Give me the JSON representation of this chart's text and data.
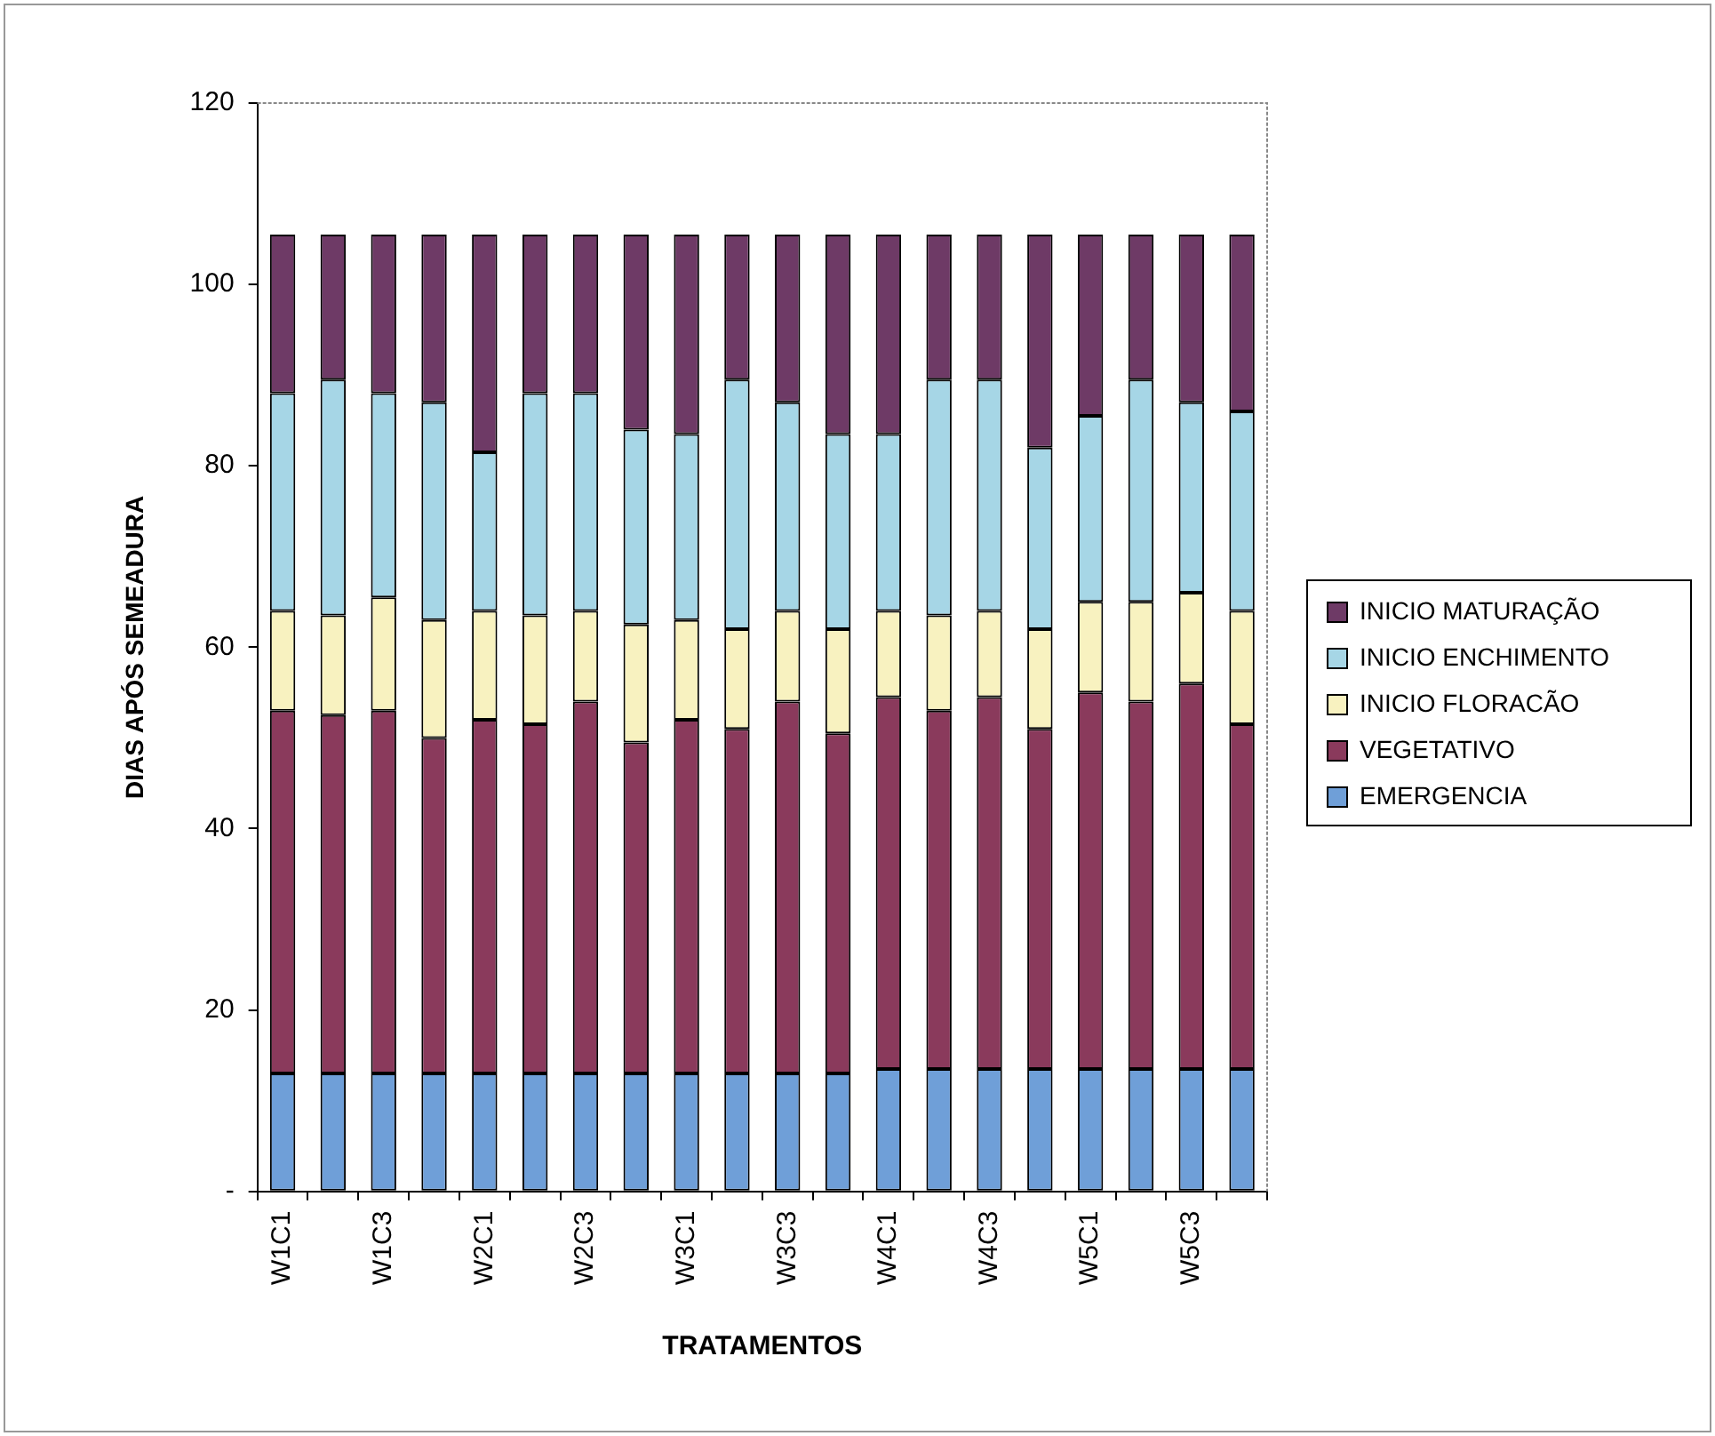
{
  "chart_data": {
    "type": "bar",
    "stacked": true,
    "xlabel": "TRATAMENTOS",
    "ylabel": "DIAS APÓS SEMEADURA",
    "categories": [
      "W1C1",
      null,
      "W1C3",
      null,
      "W2C1",
      null,
      "W2C3",
      null,
      "W3C1",
      null,
      "W3C3",
      null,
      "W4C1",
      null,
      "W4C3",
      null,
      "W5C1",
      null,
      "W5C3",
      null
    ],
    "series": [
      {
        "name": "EMERGENCIA",
        "color": "#6f9fd8",
        "values": [
          13,
          13,
          13,
          13,
          13,
          13,
          13,
          13,
          13,
          13,
          13,
          13,
          13.5,
          13.5,
          13.5,
          13.5,
          13.5,
          13.5,
          13.5,
          13.5
        ]
      },
      {
        "name": "VEGETATIVO",
        "color": "#8a3a5c",
        "values": [
          40,
          39.5,
          40,
          37,
          39,
          38.5,
          41,
          36.5,
          39,
          38,
          41,
          37.5,
          41,
          39.5,
          41,
          37.5,
          41.5,
          40.5,
          42.5,
          38
        ]
      },
      {
        "name": "INICIO FLORACÃO",
        "color": "#f8f2c0",
        "values": [
          11,
          11,
          12.5,
          13,
          12,
          12,
          10,
          13,
          11,
          11,
          10,
          11.5,
          9.5,
          10.5,
          9.5,
          11,
          10,
          11,
          10,
          12.5
        ]
      },
      {
        "name": "INICIO ENCHIMENTO",
        "color": "#a6d6e6",
        "values": [
          24,
          26,
          22.5,
          24,
          17.5,
          24.5,
          24,
          21.5,
          20.5,
          27.5,
          23,
          21.5,
          19.5,
          26,
          25.5,
          20,
          20.5,
          24.5,
          21,
          22
        ]
      },
      {
        "name": "INICIO MATURAÇÃO",
        "color": "#6e3a66",
        "values": [
          17.5,
          16,
          17.5,
          18.5,
          24,
          17.5,
          17.5,
          21.5,
          22,
          16,
          18.5,
          22,
          22,
          16,
          16,
          23.5,
          20,
          16,
          18.5,
          19.5
        ]
      }
    ],
    "ylim": [
      0,
      120
    ],
    "yticks": [
      {
        "value": 0,
        "label": "-"
      },
      20,
      40,
      60,
      80,
      100,
      120
    ],
    "legend": "right"
  }
}
